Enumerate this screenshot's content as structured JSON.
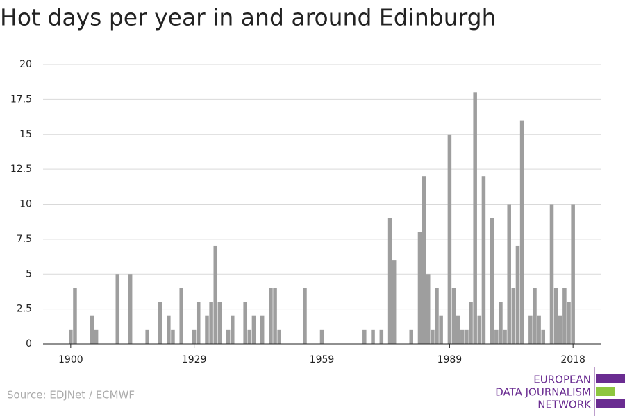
{
  "chart_data": {
    "type": "bar",
    "title": "Hot days per year in and around Edinburgh",
    "x": [
      1900,
      1901,
      1905,
      1906,
      1911,
      1914,
      1918,
      1921,
      1923,
      1924,
      1926,
      1929,
      1930,
      1932,
      1933,
      1934,
      1935,
      1937,
      1938,
      1941,
      1942,
      1943,
      1945,
      1947,
      1948,
      1949,
      1955,
      1959,
      1969,
      1971,
      1973,
      1975,
      1976,
      1980,
      1982,
      1983,
      1984,
      1985,
      1986,
      1987,
      1989,
      1990,
      1991,
      1992,
      1993,
      1994,
      1995,
      1996,
      1997,
      1999,
      2000,
      2001,
      2002,
      2003,
      2004,
      2005,
      2006,
      2008,
      2009,
      2010,
      2011,
      2013,
      2014,
      2015,
      2016,
      2017,
      2018
    ],
    "values": [
      1,
      4,
      2,
      1,
      5,
      5,
      1,
      3,
      2,
      1,
      4,
      1,
      3,
      2,
      3,
      7,
      3,
      1,
      2,
      3,
      1,
      2,
      2,
      4,
      4,
      1,
      4,
      1,
      1,
      1,
      1,
      9,
      6,
      1,
      8,
      12,
      5,
      1,
      4,
      2,
      15,
      4,
      2,
      1,
      1,
      3,
      18,
      2,
      12,
      9,
      1,
      3,
      1,
      10,
      4,
      7,
      16,
      2,
      4,
      2,
      1,
      10,
      4,
      2,
      4,
      3,
      10
    ],
    "color": "#9e9e9e",
    "xlim": [
      1893.5,
      2024.5
    ],
    "xticks": [
      1900,
      1929,
      1959,
      1989,
      2018
    ],
    "ylim": [
      0,
      20
    ],
    "yticks": [
      0,
      2.5,
      5,
      7.5,
      10,
      12.5,
      15,
      17.5,
      20
    ],
    "grid": true,
    "source": "Source: EDJNet / ECMWF",
    "logo": [
      "EUROPEAN",
      "DATA JOURNALISM",
      "NETWORK"
    ]
  }
}
